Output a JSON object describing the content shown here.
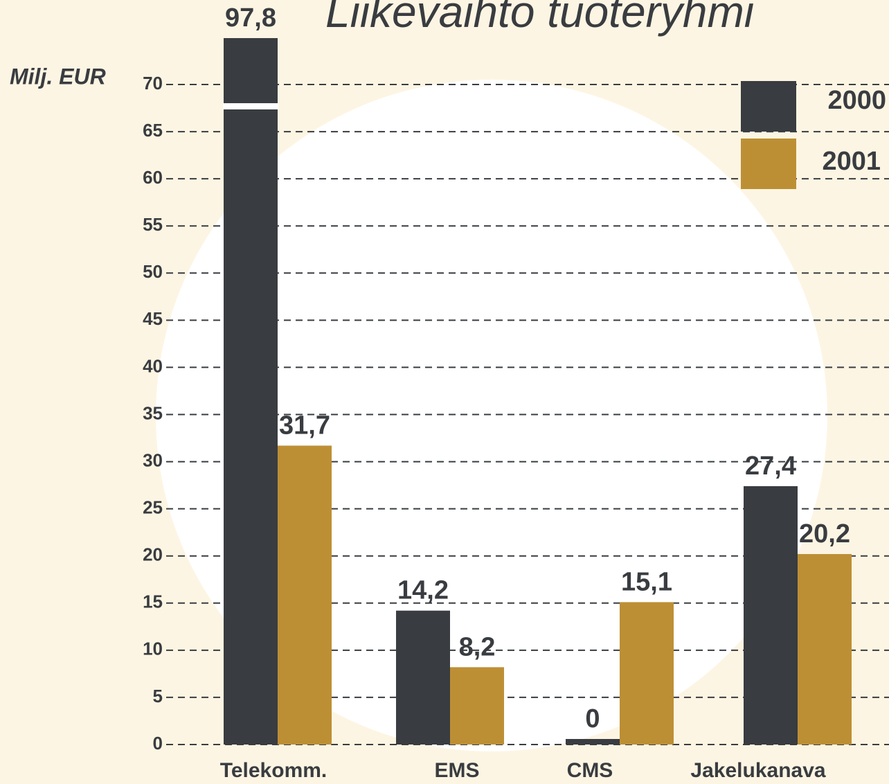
{
  "chart_data": {
    "type": "bar",
    "title": "Liikevaihto tuoteryhmi",
    "y_label": "Milj. EUR",
    "categories": [
      "Telekomm.",
      "EMS",
      "CMS",
      "Jakelukanava"
    ],
    "series": [
      {
        "name": "2000",
        "color": "#393c40",
        "values": [
          97.8,
          14.2,
          0,
          27.4
        ],
        "value_labels": [
          "97,8",
          "14,2",
          "0",
          "27,4"
        ]
      },
      {
        "name": "2001",
        "color": "#bd8f35",
        "values": [
          31.7,
          8.2,
          15.1,
          20.2
        ],
        "value_labels": [
          "31,7",
          "8,2",
          "15,1",
          "20,2"
        ]
      }
    ],
    "ylim": [
      0,
      70
    ],
    "yticks": [
      0,
      5,
      10,
      15,
      20,
      25,
      30,
      35,
      40,
      45,
      50,
      55,
      60,
      65,
      70
    ],
    "grid": true,
    "legend": "top-right"
  }
}
